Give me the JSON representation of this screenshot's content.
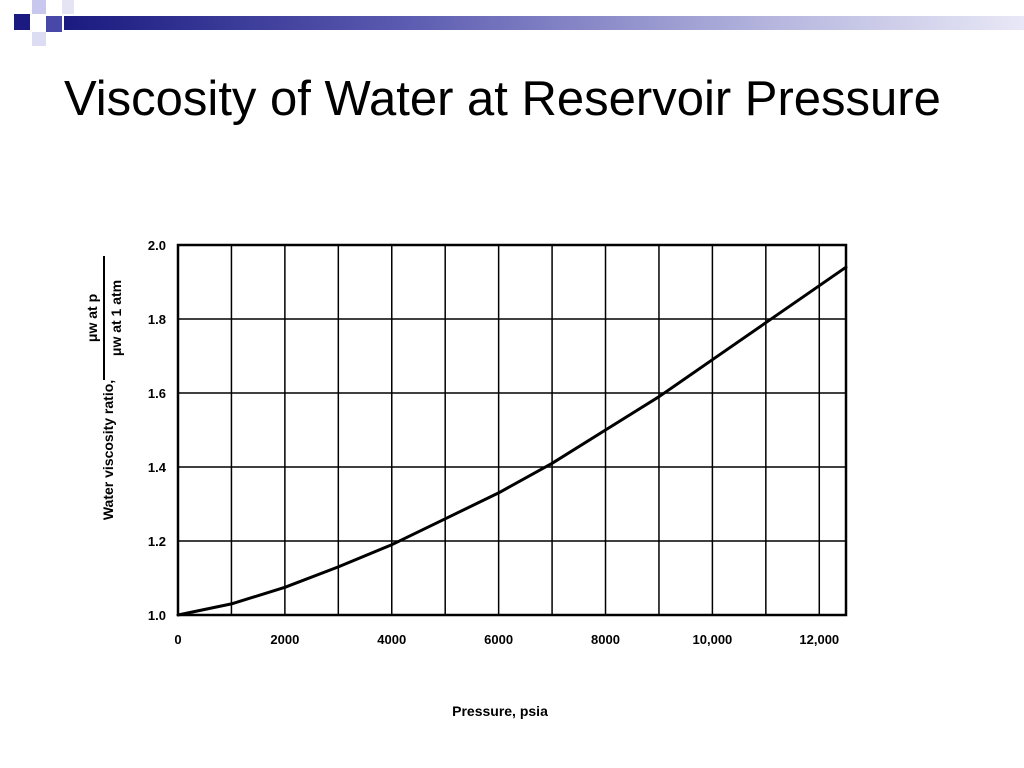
{
  "slide": {
    "title": "Viscosity of Water at Reservoir Pressure"
  },
  "colors": {
    "deco_navy": "#1a1a80",
    "deco_lavender": "#c8c8ee",
    "deco_light": "#e4e4f4",
    "line": "#000000",
    "grid": "#000000"
  },
  "chart_data": {
    "type": "line",
    "xlabel": "Pressure, psia",
    "ylabel": "Water viscosity ratio,",
    "ylabel_ratio": {
      "numerator": "μw at p",
      "denominator": "μw at 1 atm"
    },
    "xlim": [
      0,
      12500
    ],
    "ylim": [
      1.0,
      2.0
    ],
    "x_ticks": [
      0,
      2000,
      4000,
      6000,
      8000,
      10000,
      12000
    ],
    "x_tick_labels": [
      "0",
      "2000",
      "4000",
      "6000",
      "8000",
      "10,000",
      "12,000"
    ],
    "y_ticks": [
      1.0,
      1.2,
      1.4,
      1.6,
      1.8,
      2.0
    ],
    "y_tick_labels": [
      "1.0",
      "1.2",
      "1.4",
      "1.6",
      "1.8",
      "2.0"
    ],
    "x_grid_step": 1000,
    "y_grid_step": 0.2,
    "grid": true,
    "series": [
      {
        "x": [
          0,
          1000,
          2000,
          3000,
          4000,
          5000,
          6000,
          7000,
          8000,
          9000,
          10000,
          11000,
          12000,
          12500
        ],
        "y": [
          1.0,
          1.03,
          1.075,
          1.13,
          1.19,
          1.26,
          1.33,
          1.41,
          1.5,
          1.59,
          1.69,
          1.79,
          1.89,
          1.94
        ]
      }
    ]
  }
}
